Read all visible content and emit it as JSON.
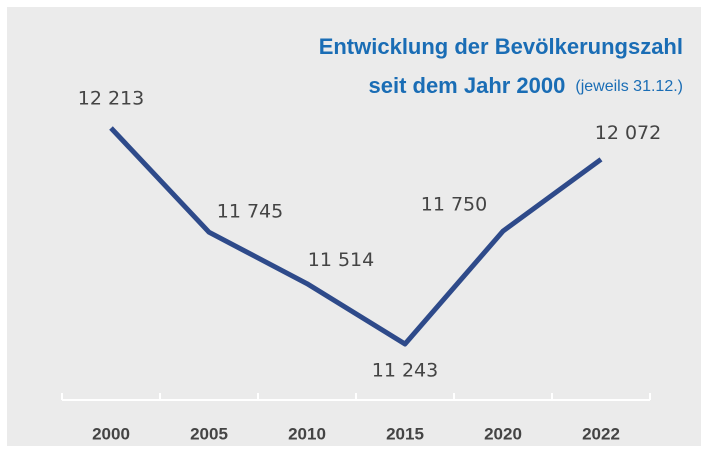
{
  "chart_data": {
    "type": "line",
    "title": [
      "Entwicklung der Bevölkerungszahl",
      "seit dem Jahr 2000"
    ],
    "subtitle": "(jeweils 31.12.)",
    "categories": [
      "2000",
      "2005",
      "2010",
      "2015",
      "2020",
      "2022"
    ],
    "values": [
      12213,
      11745,
      11514,
      11243,
      11750,
      12072
    ],
    "value_labels": [
      "12 213",
      "11 745",
      "11 514",
      "11 243",
      "11 750",
      "12 072"
    ],
    "color": "#2e4a8a"
  }
}
